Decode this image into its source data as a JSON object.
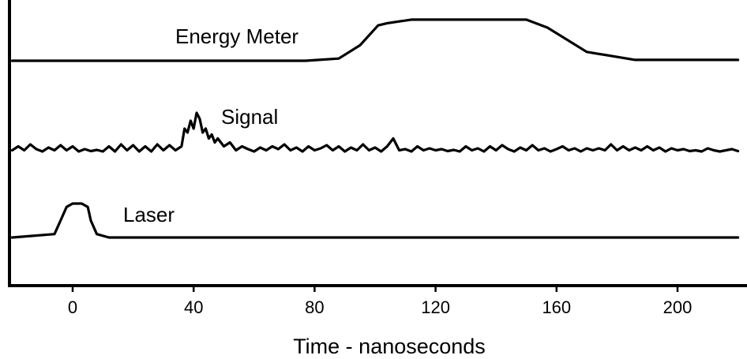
{
  "chart_data": {
    "type": "line",
    "title": "",
    "xlabel": "Time  -  nanoseconds",
    "ylabel": "",
    "xlim": [
      -20,
      220
    ],
    "xticks": [
      0,
      40,
      80,
      120,
      160,
      200
    ],
    "grid": false,
    "legend": "none",
    "series": [
      {
        "name": "Energy Meter",
        "x": [
          -20,
          77,
          88,
          95,
          101,
          104,
          112,
          150,
          157,
          170,
          186,
          220
        ],
        "y": [
          0,
          0,
          0.05,
          0.35,
          0.8,
          0.85,
          0.93,
          0.93,
          0.75,
          0.2,
          0.02,
          0.02
        ]
      },
      {
        "name": "Signal",
        "x": [
          -20,
          -18,
          -16,
          -14,
          -12,
          -10,
          -8,
          -6,
          -4,
          -2,
          0,
          2,
          4,
          6,
          8,
          10,
          12,
          14,
          16,
          18,
          20,
          22,
          24,
          26,
          28,
          30,
          32,
          34,
          36,
          37,
          38,
          39,
          40,
          41,
          42,
          43,
          44,
          45,
          46,
          47,
          48,
          50,
          52,
          54,
          56,
          58,
          60,
          62,
          64,
          66,
          68,
          70,
          72,
          74,
          76,
          78,
          80,
          82,
          84,
          86,
          88,
          90,
          92,
          94,
          96,
          98,
          100,
          102,
          104,
          106,
          108,
          110,
          112,
          114,
          116,
          118,
          120,
          122,
          124,
          126,
          128,
          130,
          132,
          134,
          136,
          138,
          140,
          142,
          144,
          146,
          148,
          150,
          152,
          154,
          156,
          158,
          160,
          162,
          164,
          166,
          168,
          170,
          172,
          174,
          176,
          178,
          180,
          182,
          184,
          186,
          188,
          190,
          192,
          194,
          196,
          198,
          200,
          202,
          204,
          206,
          208,
          210,
          212,
          214,
          216,
          218,
          220
        ],
        "y": [
          0.05,
          0.15,
          0.05,
          0.2,
          0.08,
          0.02,
          0.12,
          0.05,
          0.18,
          0.05,
          0.15,
          0.02,
          0.08,
          0.03,
          0.06,
          0.02,
          0.15,
          0.02,
          0.2,
          0.05,
          0.18,
          0.02,
          0.15,
          0.02,
          0.2,
          0.05,
          0.18,
          0.05,
          0.15,
          0.6,
          0.5,
          0.8,
          0.6,
          1.0,
          0.85,
          0.5,
          0.6,
          0.35,
          0.45,
          0.25,
          0.35,
          0.15,
          0.25,
          0.05,
          0.15,
          0.08,
          0.02,
          0.12,
          0.05,
          0.15,
          0.08,
          0.2,
          0.05,
          0.12,
          0.02,
          0.15,
          0.05,
          0.1,
          0.18,
          0.05,
          0.15,
          0.02,
          0.12,
          0.05,
          0.2,
          0.05,
          0.12,
          0.02,
          0.15,
          0.35,
          0.05,
          0.08,
          0.02,
          0.15,
          0.05,
          0.1,
          0.05,
          0.08,
          0.03,
          0.06,
          0.02,
          0.15,
          0.05,
          0.1,
          0.02,
          0.15,
          0.05,
          0.18,
          0.08,
          0.02,
          0.12,
          0.05,
          0.18,
          0.05,
          0.1,
          0.02,
          0.08,
          0.15,
          0.05,
          0.1,
          0.02,
          0.1,
          0.05,
          0.1,
          0.05,
          0.2,
          0.05,
          0.15,
          0.05,
          0.12,
          0.05,
          0.15,
          0.05,
          0.12,
          0.02,
          0.1,
          0.05,
          0.08,
          0.03,
          0.05,
          0.02,
          0.1,
          0.05,
          0.02,
          0.05,
          0.08,
          0.03
        ]
      },
      {
        "name": "Laser",
        "x": [
          -20,
          -6,
          -4,
          -2,
          0,
          3,
          5,
          6,
          8,
          12,
          220
        ],
        "y": [
          0,
          0.1,
          0.5,
          0.9,
          1,
          1,
          0.9,
          0.5,
          0.1,
          0,
          0
        ]
      }
    ]
  }
}
